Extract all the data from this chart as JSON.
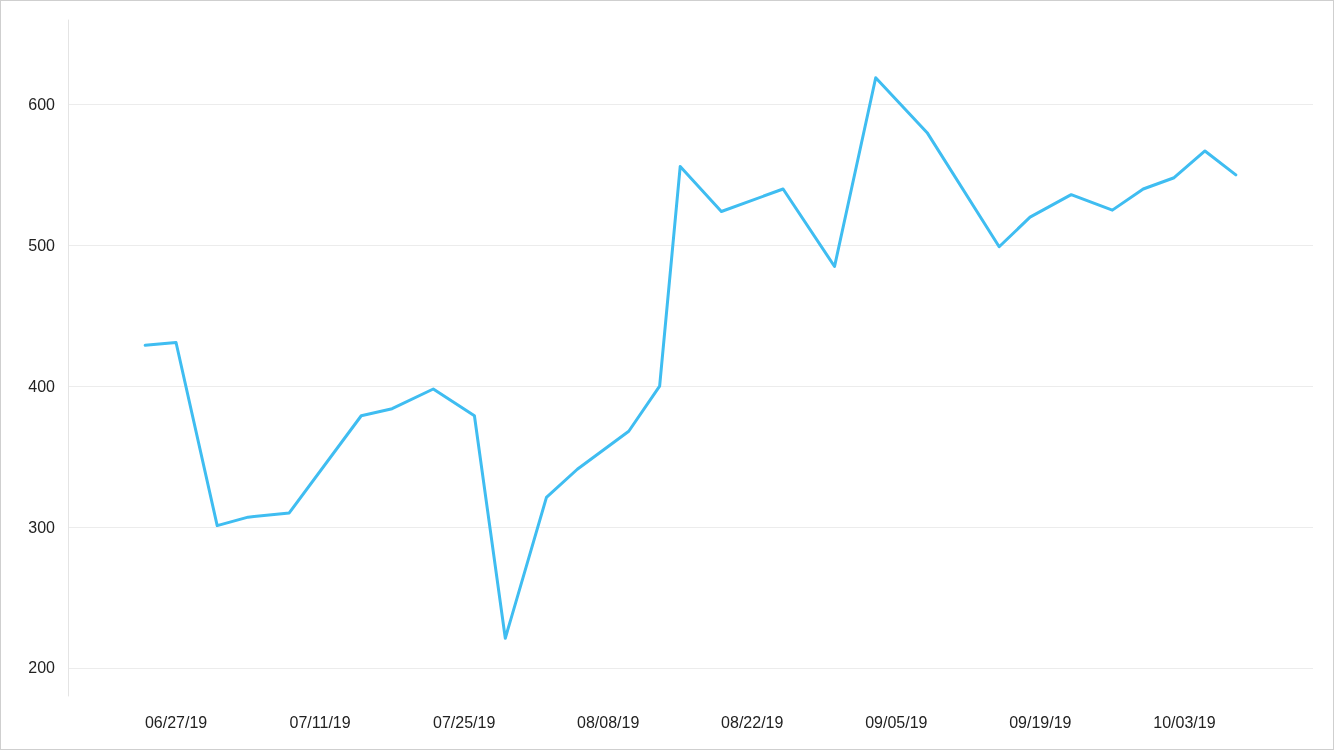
{
  "chart_data": {
    "type": "line",
    "x": [
      "2019-06-24",
      "2019-06-27",
      "2019-07-01",
      "2019-07-04",
      "2019-07-08",
      "2019-07-15",
      "2019-07-18",
      "2019-07-22",
      "2019-07-26",
      "2019-07-29",
      "2019-08-02",
      "2019-08-05",
      "2019-08-10",
      "2019-08-13",
      "2019-08-15",
      "2019-08-19",
      "2019-08-25",
      "2019-08-30",
      "2019-09-03",
      "2019-09-08",
      "2019-09-15",
      "2019-09-18",
      "2019-09-22",
      "2019-09-26",
      "2019-09-29",
      "2019-10-02",
      "2019-10-05",
      "2019-10-08"
    ],
    "series": [
      {
        "color": "#3fbdf1",
        "values": [
          429,
          431,
          301,
          307,
          310,
          379,
          384,
          398,
          379,
          221,
          321,
          341,
          368,
          400,
          556,
          524,
          540,
          485,
          619,
          580,
          499,
          520,
          536,
          525,
          540,
          548,
          567,
          550
        ]
      }
    ],
    "xlim": [
      "2019-06-16T12:00",
      "2019-10-15T12:00"
    ],
    "ylim": [
      180,
      660
    ],
    "xticks": [
      {
        "value": "2019-06-27",
        "label": "06/27/19"
      },
      {
        "value": "2019-07-11",
        "label": "07/11/19"
      },
      {
        "value": "2019-07-25",
        "label": "07/25/19"
      },
      {
        "value": "2019-08-08",
        "label": "08/08/19"
      },
      {
        "value": "2019-08-22",
        "label": "08/22/19"
      },
      {
        "value": "2019-09-05",
        "label": "09/05/19"
      },
      {
        "value": "2019-09-19",
        "label": "09/19/19"
      },
      {
        "value": "2019-10-03",
        "label": "10/03/19"
      }
    ],
    "yticks": [
      200,
      300,
      400,
      500,
      600
    ],
    "grid": "y",
    "marker": "none",
    "line_style": "solid"
  }
}
